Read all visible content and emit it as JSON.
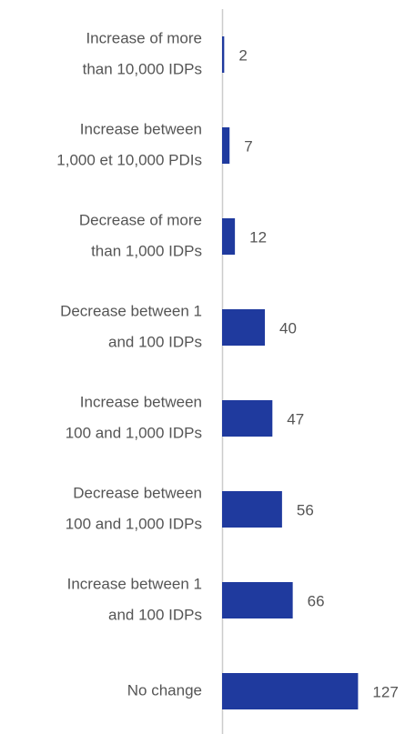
{
  "chart_data": {
    "type": "bar",
    "orientation": "horizontal",
    "categories": [
      [
        "Increase of more",
        "than 10,000 IDPs"
      ],
      [
        "Increase between",
        "1,000 et 10,000 PDIs"
      ],
      [
        "Decrease of more",
        "than 1,000 IDPs"
      ],
      [
        "Decrease between 1",
        "and 100 IDPs"
      ],
      [
        "Increase between",
        "100 and 1,000 IDPs"
      ],
      [
        "Decrease between",
        "100 and 1,000 IDPs"
      ],
      [
        "Increase between 1",
        "and 100 IDPs"
      ],
      [
        "No change"
      ]
    ],
    "values": [
      2,
      7,
      12,
      40,
      47,
      56,
      66,
      127
    ],
    "color": "#1f3a9e",
    "xlim": [
      0,
      170
    ]
  }
}
